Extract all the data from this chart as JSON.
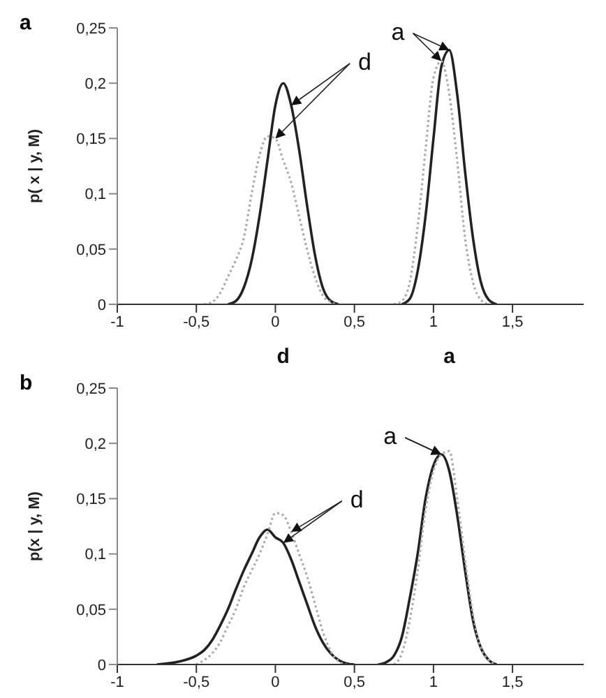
{
  "chart_data": [
    {
      "type": "line",
      "title": "a",
      "ylabel": "p( x | y, M)",
      "xlim": [
        -1,
        1.95
      ],
      "xticks": [
        {
          "value": -1,
          "label": "-1"
        },
        {
          "value": -0.5,
          "label": "-0,5"
        },
        {
          "value": 0,
          "label": "0"
        },
        {
          "value": 0.5,
          "label": "0,5"
        },
        {
          "value": 1,
          "label": "1"
        },
        {
          "value": 1.5,
          "label": "1,5"
        }
      ],
      "ylim": [
        0,
        0.25
      ],
      "yticks": [
        {
          "value": 0,
          "label": "0"
        },
        {
          "value": 0.05,
          "label": "0,05"
        },
        {
          "value": 0.1,
          "label": "0,1"
        },
        {
          "value": 0.15,
          "label": "0,15"
        },
        {
          "value": 0.2,
          "label": "0,2"
        },
        {
          "value": 0.25,
          "label": "0,25"
        }
      ],
      "grid": false,
      "marker": "none",
      "series": [
        {
          "color": "#222222",
          "line_style": "solid",
          "x": [
            -0.3,
            -0.25,
            -0.2,
            -0.15,
            -0.1,
            -0.05,
            0,
            0.05,
            0.1,
            0.15,
            0.2,
            0.25,
            0.3,
            0.35,
            0.4
          ],
          "values": [
            0,
            0.003,
            0.015,
            0.04,
            0.08,
            0.13,
            0.18,
            0.2,
            0.18,
            0.14,
            0.09,
            0.045,
            0.015,
            0.003,
            0
          ]
        },
        {
          "color": "#aaaaaa",
          "line_style": "dotted",
          "x": [
            -0.45,
            -0.4,
            -0.35,
            -0.3,
            -0.25,
            -0.2,
            -0.15,
            -0.1,
            -0.05,
            0,
            0.05,
            0.1,
            0.15,
            0.2,
            0.25,
            0.3,
            0.35,
            0.4
          ],
          "values": [
            0,
            0.002,
            0.01,
            0.025,
            0.04,
            0.06,
            0.1,
            0.135,
            0.152,
            0.15,
            0.13,
            0.11,
            0.08,
            0.05,
            0.025,
            0.008,
            0.002,
            0
          ]
        },
        {
          "color": "#222222",
          "line_style": "solid",
          "x": [
            0.8,
            0.85,
            0.9,
            0.95,
            1,
            1.05,
            1.1,
            1.15,
            1.2,
            1.25,
            1.3,
            1.35,
            1.4
          ],
          "values": [
            0,
            0.005,
            0.03,
            0.08,
            0.15,
            0.215,
            0.23,
            0.19,
            0.12,
            0.06,
            0.02,
            0.004,
            0
          ]
        },
        {
          "color": "#aaaaaa",
          "line_style": "dotted",
          "x": [
            0.75,
            0.8,
            0.85,
            0.9,
            0.95,
            1,
            1.05,
            1.1,
            1.15,
            1.2,
            1.25,
            1.3,
            1.35
          ],
          "values": [
            0,
            0.003,
            0.02,
            0.07,
            0.14,
            0.205,
            0.22,
            0.19,
            0.13,
            0.06,
            0.02,
            0.004,
            0
          ]
        }
      ],
      "annotations": [
        {
          "text": "d",
          "x": 0.1,
          "y": 0.18
        },
        {
          "text": "a",
          "x": 1.1,
          "y": 0.23
        },
        "d",
        "a"
      ]
    },
    {
      "type": "line",
      "title": "b",
      "ylabel": "p(x | y, M)",
      "xlim": [
        -1,
        1.95
      ],
      "xticks": [
        {
          "value": -1,
          "label": "-1"
        },
        {
          "value": -0.5,
          "label": "-0,5"
        },
        {
          "value": 0,
          "label": "0"
        },
        {
          "value": 0.5,
          "label": "0,5"
        },
        {
          "value": 1,
          "label": "1"
        },
        {
          "value": 1.5,
          "label": "1,5"
        }
      ],
      "ylim": [
        0,
        0.25
      ],
      "yticks": [
        {
          "value": 0,
          "label": "0"
        },
        {
          "value": 0.05,
          "label": "0,05"
        },
        {
          "value": 0.1,
          "label": "0,1"
        },
        {
          "value": 0.15,
          "label": "0,15"
        },
        {
          "value": 0.2,
          "label": "0,2"
        },
        {
          "value": 0.25,
          "label": "0,25"
        }
      ],
      "grid": false,
      "marker": "none",
      "series": [
        {
          "color": "#222222",
          "line_style": "solid",
          "x": [
            -0.75,
            -0.6,
            -0.5,
            -0.45,
            -0.4,
            -0.35,
            -0.3,
            -0.25,
            -0.2,
            -0.15,
            -0.1,
            -0.05,
            0,
            0.05,
            0.1,
            0.15,
            0.2,
            0.25,
            0.3,
            0.35,
            0.4,
            0.45,
            0.5
          ],
          "values": [
            0,
            0.003,
            0.008,
            0.013,
            0.022,
            0.035,
            0.05,
            0.068,
            0.085,
            0.1,
            0.115,
            0.122,
            0.115,
            0.11,
            0.095,
            0.075,
            0.055,
            0.035,
            0.02,
            0.01,
            0.004,
            0.001,
            0
          ]
        },
        {
          "color": "#aaaaaa",
          "line_style": "dotted",
          "x": [
            -0.5,
            -0.45,
            -0.4,
            -0.35,
            -0.3,
            -0.25,
            -0.2,
            -0.15,
            -0.1,
            -0.05,
            0,
            0.05,
            0.1,
            0.15,
            0.2,
            0.25,
            0.3,
            0.35,
            0.4,
            0.45
          ],
          "values": [
            0,
            0.004,
            0.01,
            0.02,
            0.035,
            0.05,
            0.07,
            0.085,
            0.1,
            0.118,
            0.137,
            0.135,
            0.12,
            0.1,
            0.08,
            0.055,
            0.03,
            0.012,
            0.003,
            0
          ]
        },
        {
          "color": "#222222",
          "line_style": "solid",
          "x": [
            0.65,
            0.7,
            0.75,
            0.8,
            0.85,
            0.9,
            0.95,
            1,
            1.05,
            1.1,
            1.15,
            1.2,
            1.25,
            1.3,
            1.35,
            1.4
          ],
          "values": [
            0,
            0.002,
            0.008,
            0.025,
            0.06,
            0.1,
            0.15,
            0.18,
            0.19,
            0.175,
            0.135,
            0.085,
            0.04,
            0.015,
            0.004,
            0
          ]
        },
        {
          "color": "#aaaaaa",
          "line_style": "dotted",
          "x": [
            0.75,
            0.8,
            0.85,
            0.9,
            0.95,
            1,
            1.05,
            1.1,
            1.15,
            1.2,
            1.25,
            1.3,
            1.35,
            1.4
          ],
          "values": [
            0,
            0.01,
            0.04,
            0.085,
            0.14,
            0.175,
            0.19,
            0.193,
            0.15,
            0.095,
            0.045,
            0.015,
            0.004,
            0
          ]
        }
      ],
      "annotations": [
        {
          "text": "d",
          "x": 0.05,
          "y": 0.11
        },
        {
          "text": "a",
          "x": 1.05,
          "y": 0.19
        }
      ]
    }
  ]
}
